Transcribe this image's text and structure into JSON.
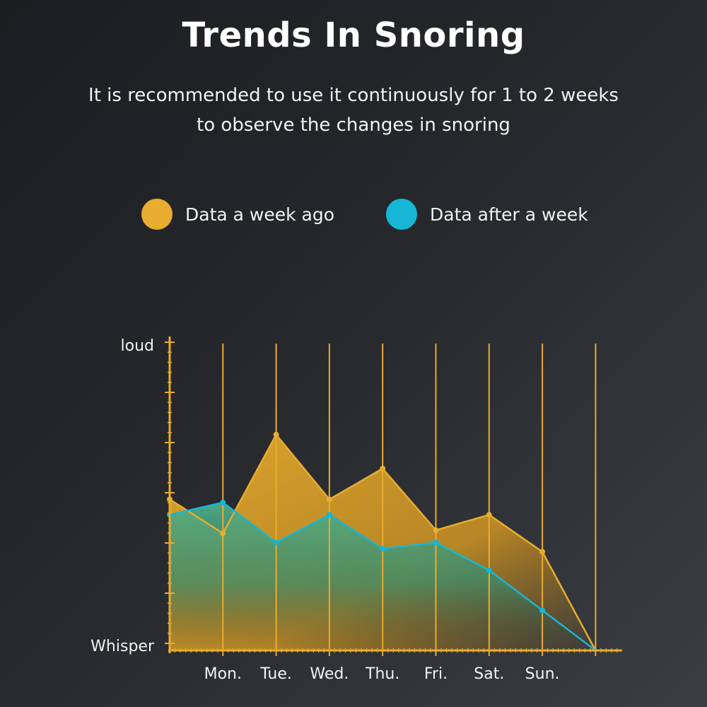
{
  "header": {
    "title": "Trends In Snoring",
    "subtitle": "It is recommended to use it continuously for 1 to 2 weeks to observe the changes in snoring"
  },
  "colors": {
    "before": "#e8ac2e",
    "after": "#16b6d6",
    "axis": "#e8ac2e"
  },
  "chart_data": {
    "type": "area",
    "title": "Trends In Snoring",
    "y_axis_labels": {
      "top": "loud",
      "bottom": "Whisper"
    },
    "categories": [
      "Mon.",
      "Tue.",
      "Wed.",
      "Thu.",
      "Fri.",
      "Sat.",
      "Sun."
    ],
    "legend_position": "top",
    "ylim": [
      0,
      100
    ],
    "series": [
      {
        "name": "Data a week ago",
        "color": "#e8ac2e",
        "start": 49,
        "values": [
          38,
          70,
          49,
          59,
          39,
          44,
          32
        ],
        "end": 0
      },
      {
        "name": "Data after a week",
        "color": "#16b6d6",
        "start": 44,
        "values": [
          48,
          35,
          44,
          33,
          35,
          26,
          13
        ],
        "end": 0
      }
    ]
  }
}
